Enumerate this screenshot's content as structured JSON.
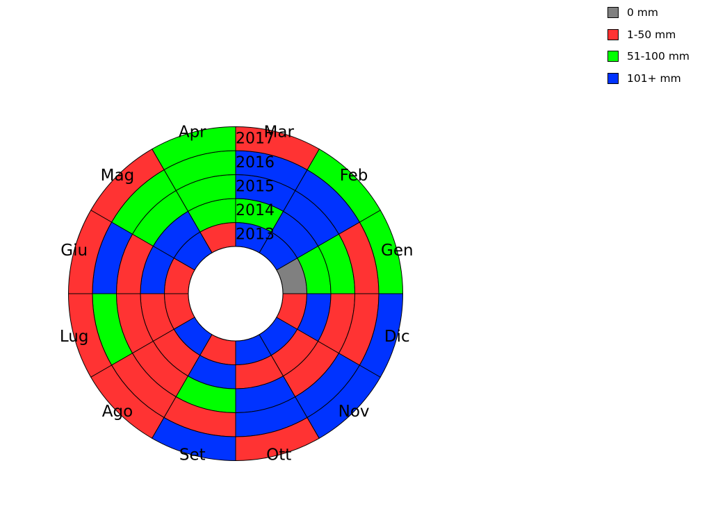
{
  "chart_data": {
    "type": "heatmap",
    "subtype": "polar-ring-calendar",
    "months": [
      "Gen",
      "Feb",
      "Mar",
      "Apr",
      "Mag",
      "Giu",
      "Lug",
      "Ago",
      "Set",
      "Ott",
      "Nov",
      "Dic"
    ],
    "years": [
      "2013",
      "2014",
      "2015",
      "2016",
      "2017"
    ],
    "legend": [
      {
        "label": "0 mm",
        "color": "#808080"
      },
      {
        "label": "1-50 mm",
        "color": "#ff3333"
      },
      {
        "label": "51-100 mm",
        "color": "#00ff00"
      },
      {
        "label": "101+ mm",
        "color": "#0033ff"
      }
    ],
    "values": [
      [
        0,
        3,
        3,
        1,
        3,
        1,
        1,
        3,
        1,
        3,
        3,
        1
      ],
      [
        2,
        3,
        2,
        2,
        3,
        3,
        1,
        1,
        3,
        1,
        1,
        3
      ],
      [
        2,
        3,
        3,
        2,
        2,
        1,
        1,
        1,
        2,
        3,
        1,
        1
      ],
      [
        1,
        3,
        3,
        2,
        2,
        3,
        2,
        1,
        1,
        3,
        3,
        1
      ],
      [
        2,
        2,
        1,
        2,
        1,
        1,
        1,
        1,
        3,
        1,
        3,
        3
      ]
    ],
    "legend_position": "top-right"
  }
}
